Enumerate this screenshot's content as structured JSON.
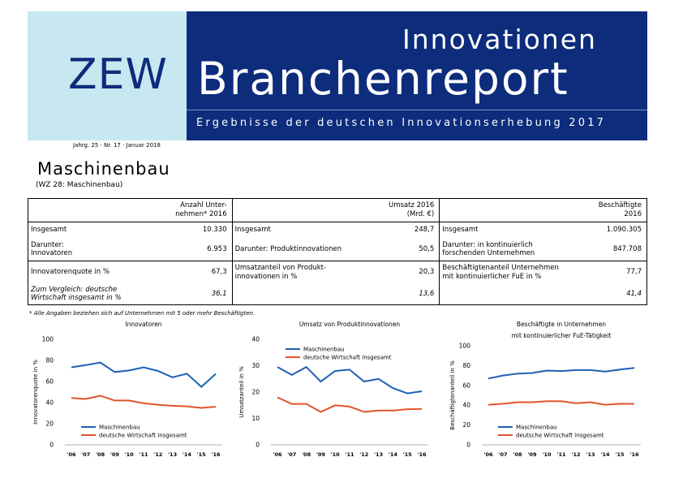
{
  "header": {
    "zew": "ZEW",
    "innovationen": "Innovationen",
    "branchenreport": "Branchenreport",
    "subtitle": "Ergebnisse der deutschen Innovationserhebung 2017",
    "issue": "Jahrg. 25 · Nr. 17 · Januar 2018"
  },
  "page": {
    "title": "Maschinenbau",
    "subtitle": "(WZ 28: Maschinenbau)",
    "footnote": "* Alle Angaben beziehen sich auf Unternehmen mit 5 oder mehr Beschäftigten."
  },
  "table": {
    "head": {
      "col1_line1": "Anzahl Unter-",
      "col1_line2": "nehmen* 2016",
      "col2_line1": "Umsatz 2016",
      "col2_line2": "(Mrd. €)",
      "col3_line1": "Beschäftigte",
      "col3_line2": "2016"
    },
    "r1": {
      "l1": "Insgesamt",
      "v1": "10.330",
      "l2": "Insgesamt",
      "v2": "248,7",
      "l3": "Insgesamt",
      "v3": "1.090.305"
    },
    "r2": {
      "l1a": "Darunter:",
      "l1b": "Innovatoren",
      "v1": "6.953",
      "l2": "Darunter: Produktinnovationen",
      "v2": "50,5",
      "l3a": "Darunter: in kontinuierlich",
      "l3b": "forschenden Unternehmen",
      "v3": "847.708"
    },
    "r3": {
      "l1": "Innovatorenquote in %",
      "v1": "67,3",
      "l2a": "Umsatzanteil von Produkt-",
      "l2b": "innovationen in %",
      "v2": "20,3",
      "l3a": "Beschäftigtenanteil Unternehmen",
      "l3b": "mit kontinuierlicher FuE in %",
      "v3": "77,7"
    },
    "r4": {
      "l1a": "Zum Vergleich: deutsche",
      "l1b": "Wirtschaft insgesamt in %",
      "v1": "36,1",
      "v2": "13,6",
      "v3": "41,4"
    }
  },
  "chart_data": [
    {
      "type": "line",
      "title": "Innovatoren",
      "ylabel": "Innovatorenquote in %",
      "xlabel": "",
      "categories": [
        "'06",
        "'07",
        "'08",
        "'09",
        "'10",
        "'11",
        "'12",
        "'13",
        "'14",
        "'15",
        "'16"
      ],
      "ylim": [
        0,
        100
      ],
      "yticks": [
        "0",
        "20",
        "40",
        "60",
        "80",
        "100"
      ],
      "series": [
        {
          "name": "Maschinenbau",
          "color": "#1f5fb4",
          "values": [
            73.5,
            75.5,
            78,
            69,
            70.5,
            73.5,
            70,
            64,
            67.5,
            55,
            67.3
          ]
        },
        {
          "name": "deutsche Wirtschaft insgesamt",
          "color": "#e0532a",
          "values": [
            44.5,
            43.5,
            46.5,
            42,
            42,
            39.5,
            38,
            37,
            36.5,
            35,
            36.1
          ]
        }
      ]
    },
    {
      "type": "line",
      "title": "Umsatz von Produktinnovationen",
      "ylabel": "Umsatzanteil in %",
      "xlabel": "",
      "categories": [
        "'06",
        "'07",
        "'08",
        "'09",
        "'10",
        "'11",
        "'12",
        "'13",
        "'14",
        "'15",
        "'16"
      ],
      "ylim": [
        0,
        40
      ],
      "yticks": [
        "0",
        "10",
        "20",
        "30",
        "40"
      ],
      "series": [
        {
          "name": "Maschinenbau",
          "color": "#1f5fb4",
          "values": [
            29.5,
            26.5,
            29.5,
            24,
            28,
            28.5,
            24,
            25,
            21.5,
            19.5,
            20.3
          ]
        },
        {
          "name": "deutsche Wirtschaft insgesamt",
          "color": "#e0532a",
          "values": [
            18,
            15.5,
            15.5,
            12.5,
            15,
            14.5,
            12.5,
            13,
            13,
            13.5,
            13.6
          ]
        }
      ]
    },
    {
      "type": "line",
      "title": "Beschäftigte in Unternehmen",
      "subtitle": "mit kontinuierlicher FuE-Tätigkeit",
      "ylabel": "Beschäftigtenanteil in %",
      "xlabel": "",
      "categories": [
        "'06",
        "'07",
        "'08",
        "'09",
        "'10",
        "'11",
        "'12",
        "'13",
        "'14",
        "'15",
        "'16"
      ],
      "ylim": [
        0,
        100
      ],
      "yticks": [
        "0",
        "20",
        "40",
        "60",
        "80",
        "100"
      ],
      "series": [
        {
          "name": "Maschinenbau",
          "color": "#1f5fb4",
          "values": [
            67,
            70,
            72,
            72.5,
            75,
            74.5,
            75.5,
            75.5,
            74,
            76,
            77.7
          ]
        },
        {
          "name": "deutsche Wirtschaft insgesamt",
          "color": "#e0532a",
          "values": [
            40.5,
            41.5,
            43,
            43,
            44,
            44,
            42,
            43,
            40.5,
            41.5,
            41.4
          ]
        }
      ]
    }
  ]
}
